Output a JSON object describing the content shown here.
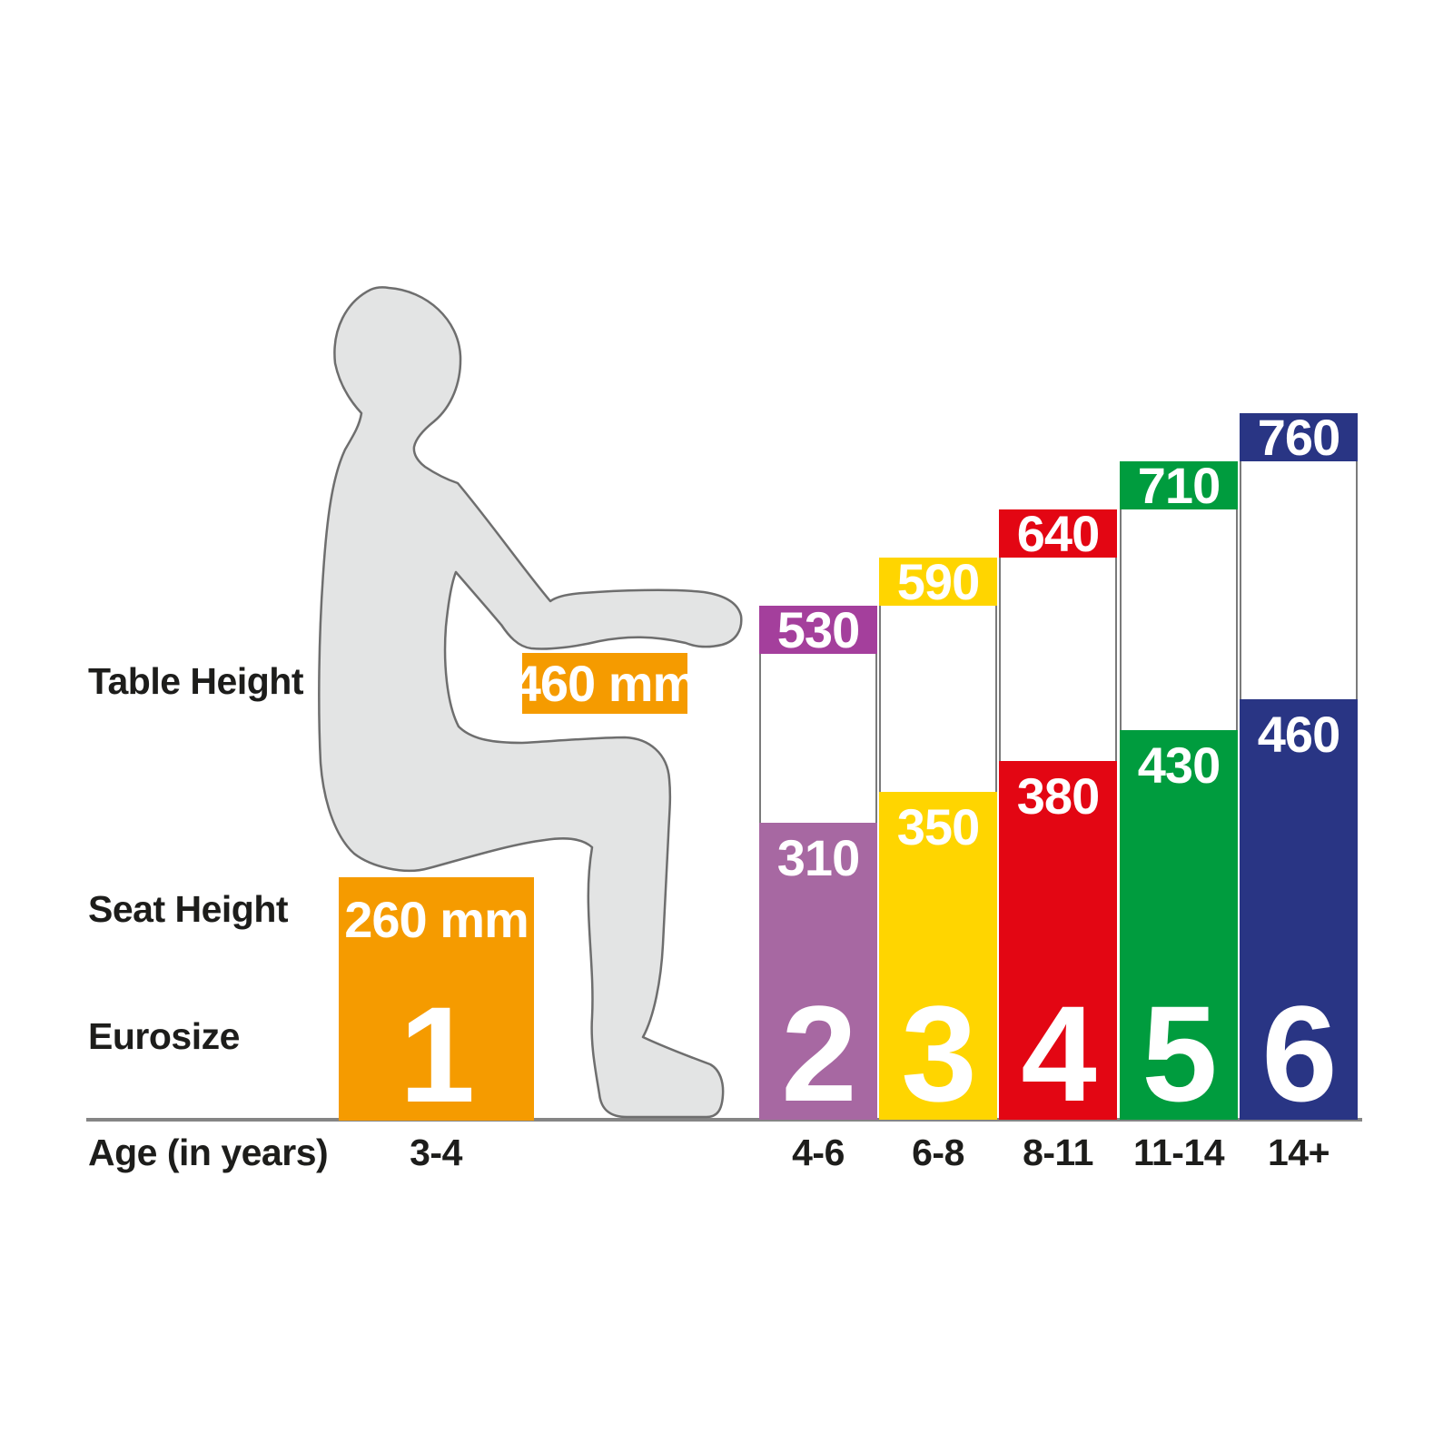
{
  "left_labels": {
    "table_height": "Table Height",
    "seat_height": "Seat Height",
    "eurosize": "Eurosize",
    "age": "Age (in years)"
  },
  "chart_data": {
    "type": "bar",
    "unit": "mm",
    "categories": [
      "1",
      "2",
      "3",
      "4",
      "5",
      "6"
    ],
    "age_labels": [
      "3-4",
      "4-6",
      "6-8",
      "8-11",
      "11-14",
      "14+"
    ],
    "series": [
      {
        "name": "Table Height",
        "values": [
          460,
          530,
          590,
          640,
          710,
          760
        ]
      },
      {
        "name": "Seat Height",
        "values": [
          260,
          310,
          350,
          380,
          430,
          460
        ]
      }
    ],
    "columns": [
      {
        "eurosize": "1",
        "age": "3-4",
        "table_mm": 460,
        "seat_mm": 260,
        "table_label": "460 mm",
        "seat_label": "260 mm",
        "color": "#F59B00"
      },
      {
        "eurosize": "2",
        "age": "4-6",
        "table_mm": 530,
        "seat_mm": 310,
        "cap_color": "#A43F9C",
        "body_color": "#A768A2"
      },
      {
        "eurosize": "3",
        "age": "6-8",
        "table_mm": 590,
        "seat_mm": 350,
        "cap_color": "#FFD500",
        "body_color": "#FFD500"
      },
      {
        "eurosize": "4",
        "age": "8-11",
        "table_mm": 640,
        "seat_mm": 380,
        "cap_color": "#E30613",
        "body_color": "#E30613"
      },
      {
        "eurosize": "5",
        "age": "11-14",
        "table_mm": 710,
        "seat_mm": 430,
        "cap_color": "#009C3E",
        "body_color": "#009C3E"
      },
      {
        "eurosize": "6",
        "age": "14+",
        "table_mm": 760,
        "seat_mm": 460,
        "cap_color": "#293584",
        "body_color": "#293584"
      }
    ]
  },
  "colors": {
    "baseline": "#858585",
    "bar_outline": "#7A7A7A",
    "silhouette_fill": "#E3E4E4",
    "silhouette_stroke": "#6E6E6E",
    "text": "#1D1D1B",
    "value_text": "#FFFFFF"
  }
}
